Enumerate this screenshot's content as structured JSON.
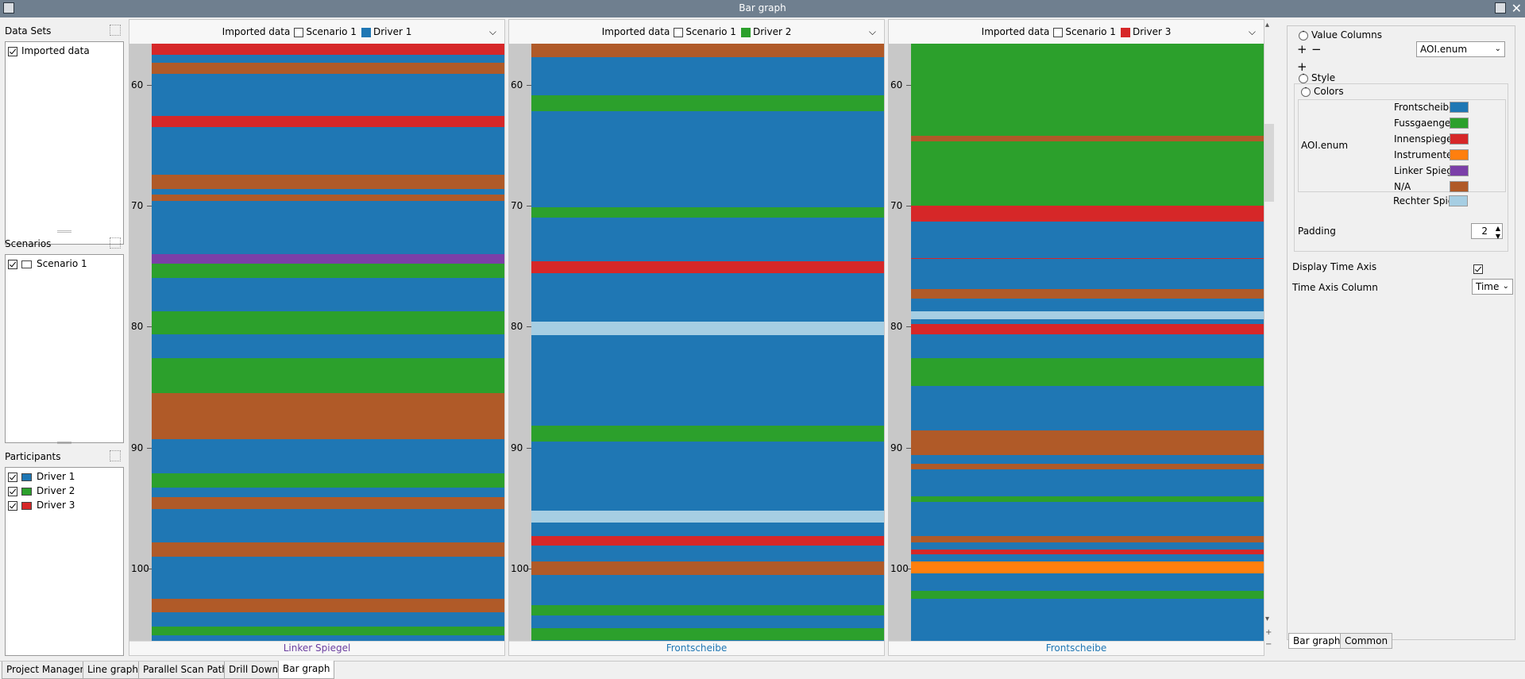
{
  "window": {
    "title": "Bar graph"
  },
  "left_panel": {
    "data_sets": {
      "title": "Data Sets",
      "items": [
        {
          "label": "Imported data",
          "checked": true
        }
      ]
    },
    "scenarios": {
      "title": "Scenarios",
      "items": [
        {
          "label": "Scenario 1",
          "checked": true,
          "color": "#ffffff"
        }
      ]
    },
    "participants": {
      "title": "Participants",
      "items": [
        {
          "label": "Driver 1",
          "checked": true,
          "color": "#1f77b4"
        },
        {
          "label": "Driver 2",
          "checked": true,
          "color": "#2ca02c"
        },
        {
          "label": "Driver 3",
          "checked": true,
          "color": "#d62728"
        }
      ]
    }
  },
  "charts": [
    {
      "dataset": "Imported data",
      "scenario": "Scenario 1",
      "driver": "Driver 1",
      "driver_color": "#1f77b4",
      "footer": "Linker Spiegel",
      "footer_color": "#6b3fa0"
    },
    {
      "dataset": "Imported data",
      "scenario": "Scenario 1",
      "driver": "Driver 2",
      "driver_color": "#2ca02c",
      "footer": "Frontscheibe",
      "footer_color": "#1f77b4"
    },
    {
      "dataset": "Imported data",
      "scenario": "Scenario 1",
      "driver": "Driver 3",
      "driver_color": "#d62728",
      "footer": "Frontscheibe",
      "footer_color": "#1f77b4"
    }
  ],
  "chart_data": {
    "type": "bar",
    "orientation": "vertical-timeline",
    "time_axis": {
      "label": "Time",
      "range": [
        56.6,
        106.1
      ],
      "ticks": [
        60,
        70,
        80,
        90,
        100
      ]
    },
    "default_category": "Frontscheibe",
    "categories": [
      "Frontscheibe",
      "Fussgaenger",
      "Innenspiegel",
      "Instrumente",
      "Linker Spiegel",
      "N/A",
      "Rechter Spiegel"
    ],
    "colors": {
      "Frontscheibe": "#1f77b4",
      "Fussgaenger": "#2ca02c",
      "Innenspiegel": "#d62728",
      "Instrumente": "#ff7f0e",
      "Linker Spiegel": "#7b3fa8",
      "N/A": "#b05a28",
      "Rechter Spiegel": "#a6cee3"
    },
    "series": [
      {
        "name": "Driver 1",
        "segments": [
          {
            "start": 56.6,
            "end": 57.5,
            "aoi": "Innenspiegel"
          },
          {
            "start": 58.2,
            "end": 59.1,
            "aoi": "N/A"
          },
          {
            "start": 62.6,
            "end": 63.5,
            "aoi": "Innenspiegel"
          },
          {
            "start": 67.4,
            "end": 68.6,
            "aoi": "N/A"
          },
          {
            "start": 69.1,
            "end": 69.6,
            "aoi": "N/A"
          },
          {
            "start": 74.0,
            "end": 74.8,
            "aoi": "Linker Spiegel"
          },
          {
            "start": 74.8,
            "end": 76.0,
            "aoi": "Fussgaenger"
          },
          {
            "start": 78.7,
            "end": 80.6,
            "aoi": "Fussgaenger"
          },
          {
            "start": 82.6,
            "end": 85.5,
            "aoi": "Fussgaenger"
          },
          {
            "start": 85.5,
            "end": 89.3,
            "aoi": "N/A"
          },
          {
            "start": 92.1,
            "end": 93.3,
            "aoi": "Fussgaenger"
          },
          {
            "start": 94.1,
            "end": 95.1,
            "aoi": "N/A"
          },
          {
            "start": 97.8,
            "end": 99.0,
            "aoi": "N/A"
          },
          {
            "start": 102.5,
            "end": 103.6,
            "aoi": "N/A"
          },
          {
            "start": 104.8,
            "end": 105.5,
            "aoi": "Fussgaenger"
          }
        ]
      },
      {
        "name": "Driver 2",
        "segments": [
          {
            "start": 56.6,
            "end": 57.7,
            "aoi": "N/A"
          },
          {
            "start": 60.9,
            "end": 62.2,
            "aoi": "Fussgaenger"
          },
          {
            "start": 70.1,
            "end": 71.0,
            "aoi": "Fussgaenger"
          },
          {
            "start": 74.6,
            "end": 75.6,
            "aoi": "Innenspiegel"
          },
          {
            "start": 79.6,
            "end": 80.7,
            "aoi": "Rechter Spiegel"
          },
          {
            "start": 88.2,
            "end": 89.5,
            "aoi": "Fussgaenger"
          },
          {
            "start": 95.2,
            "end": 96.2,
            "aoi": "Rechter Spiegel"
          },
          {
            "start": 97.3,
            "end": 98.1,
            "aoi": "Innenspiegel"
          },
          {
            "start": 99.4,
            "end": 100.5,
            "aoi": "N/A"
          },
          {
            "start": 103.0,
            "end": 103.9,
            "aoi": "Fussgaenger"
          },
          {
            "start": 104.9,
            "end": 105.9,
            "aoi": "Fussgaenger"
          }
        ]
      },
      {
        "name": "Driver 3",
        "segments": [
          {
            "start": 56.6,
            "end": 64.2,
            "aoi": "Fussgaenger"
          },
          {
            "start": 64.2,
            "end": 64.7,
            "aoi": "N/A"
          },
          {
            "start": 64.7,
            "end": 70.0,
            "aoi": "Fussgaenger"
          },
          {
            "start": 70.0,
            "end": 71.3,
            "aoi": "Innenspiegel"
          },
          {
            "start": 74.3,
            "end": 74.4,
            "aoi": "Innenspiegel"
          },
          {
            "start": 76.9,
            "end": 77.7,
            "aoi": "N/A"
          },
          {
            "start": 78.7,
            "end": 79.4,
            "aoi": "Rechter Spiegel"
          },
          {
            "start": 79.8,
            "end": 80.6,
            "aoi": "Innenspiegel"
          },
          {
            "start": 82.6,
            "end": 84.9,
            "aoi": "Fussgaenger"
          },
          {
            "start": 88.6,
            "end": 90.6,
            "aoi": "N/A"
          },
          {
            "start": 91.3,
            "end": 91.8,
            "aoi": "N/A"
          },
          {
            "start": 94.0,
            "end": 94.5,
            "aoi": "Fussgaenger"
          },
          {
            "start": 97.3,
            "end": 97.8,
            "aoi": "N/A"
          },
          {
            "start": 98.4,
            "end": 98.8,
            "aoi": "Innenspiegel"
          },
          {
            "start": 99.4,
            "end": 100.4,
            "aoi": "Instrumente"
          },
          {
            "start": 101.8,
            "end": 102.5,
            "aoi": "Fussgaenger"
          }
        ]
      }
    ]
  },
  "right_panel": {
    "value_columns": {
      "title": "Value Columns",
      "selected": "AOI.enum",
      "add": "+",
      "remove": "−",
      "add2": "+"
    },
    "style": {
      "title": "Style",
      "colors_title": "Colors",
      "column_name": "AOI.enum"
    },
    "legend": [
      {
        "label": "Frontscheibe",
        "color": "#1f77b4"
      },
      {
        "label": "Fussgaenger",
        "color": "#2ca02c"
      },
      {
        "label": "Innenspiegel",
        "color": "#d62728"
      },
      {
        "label": "Instrumente",
        "color": "#ff7f0e"
      },
      {
        "label": "Linker Spiegel",
        "color": "#7b3fa8"
      },
      {
        "label": "N/A",
        "color": "#b05a28"
      },
      {
        "label": "Rechter Spiegel",
        "color": "#a6cee3"
      }
    ],
    "padding": {
      "label": "Padding",
      "value": "2"
    },
    "display_time_axis": {
      "label": "Display Time Axis",
      "checked": true
    },
    "time_axis_column": {
      "label": "Time Axis Column",
      "value": "Time"
    },
    "tabs": [
      "Bar graph",
      "Common"
    ]
  },
  "bottom_tabs": [
    "Project Manager",
    "Line graph",
    "Parallel Scan Path",
    "Drill Down",
    "Bar graph"
  ]
}
